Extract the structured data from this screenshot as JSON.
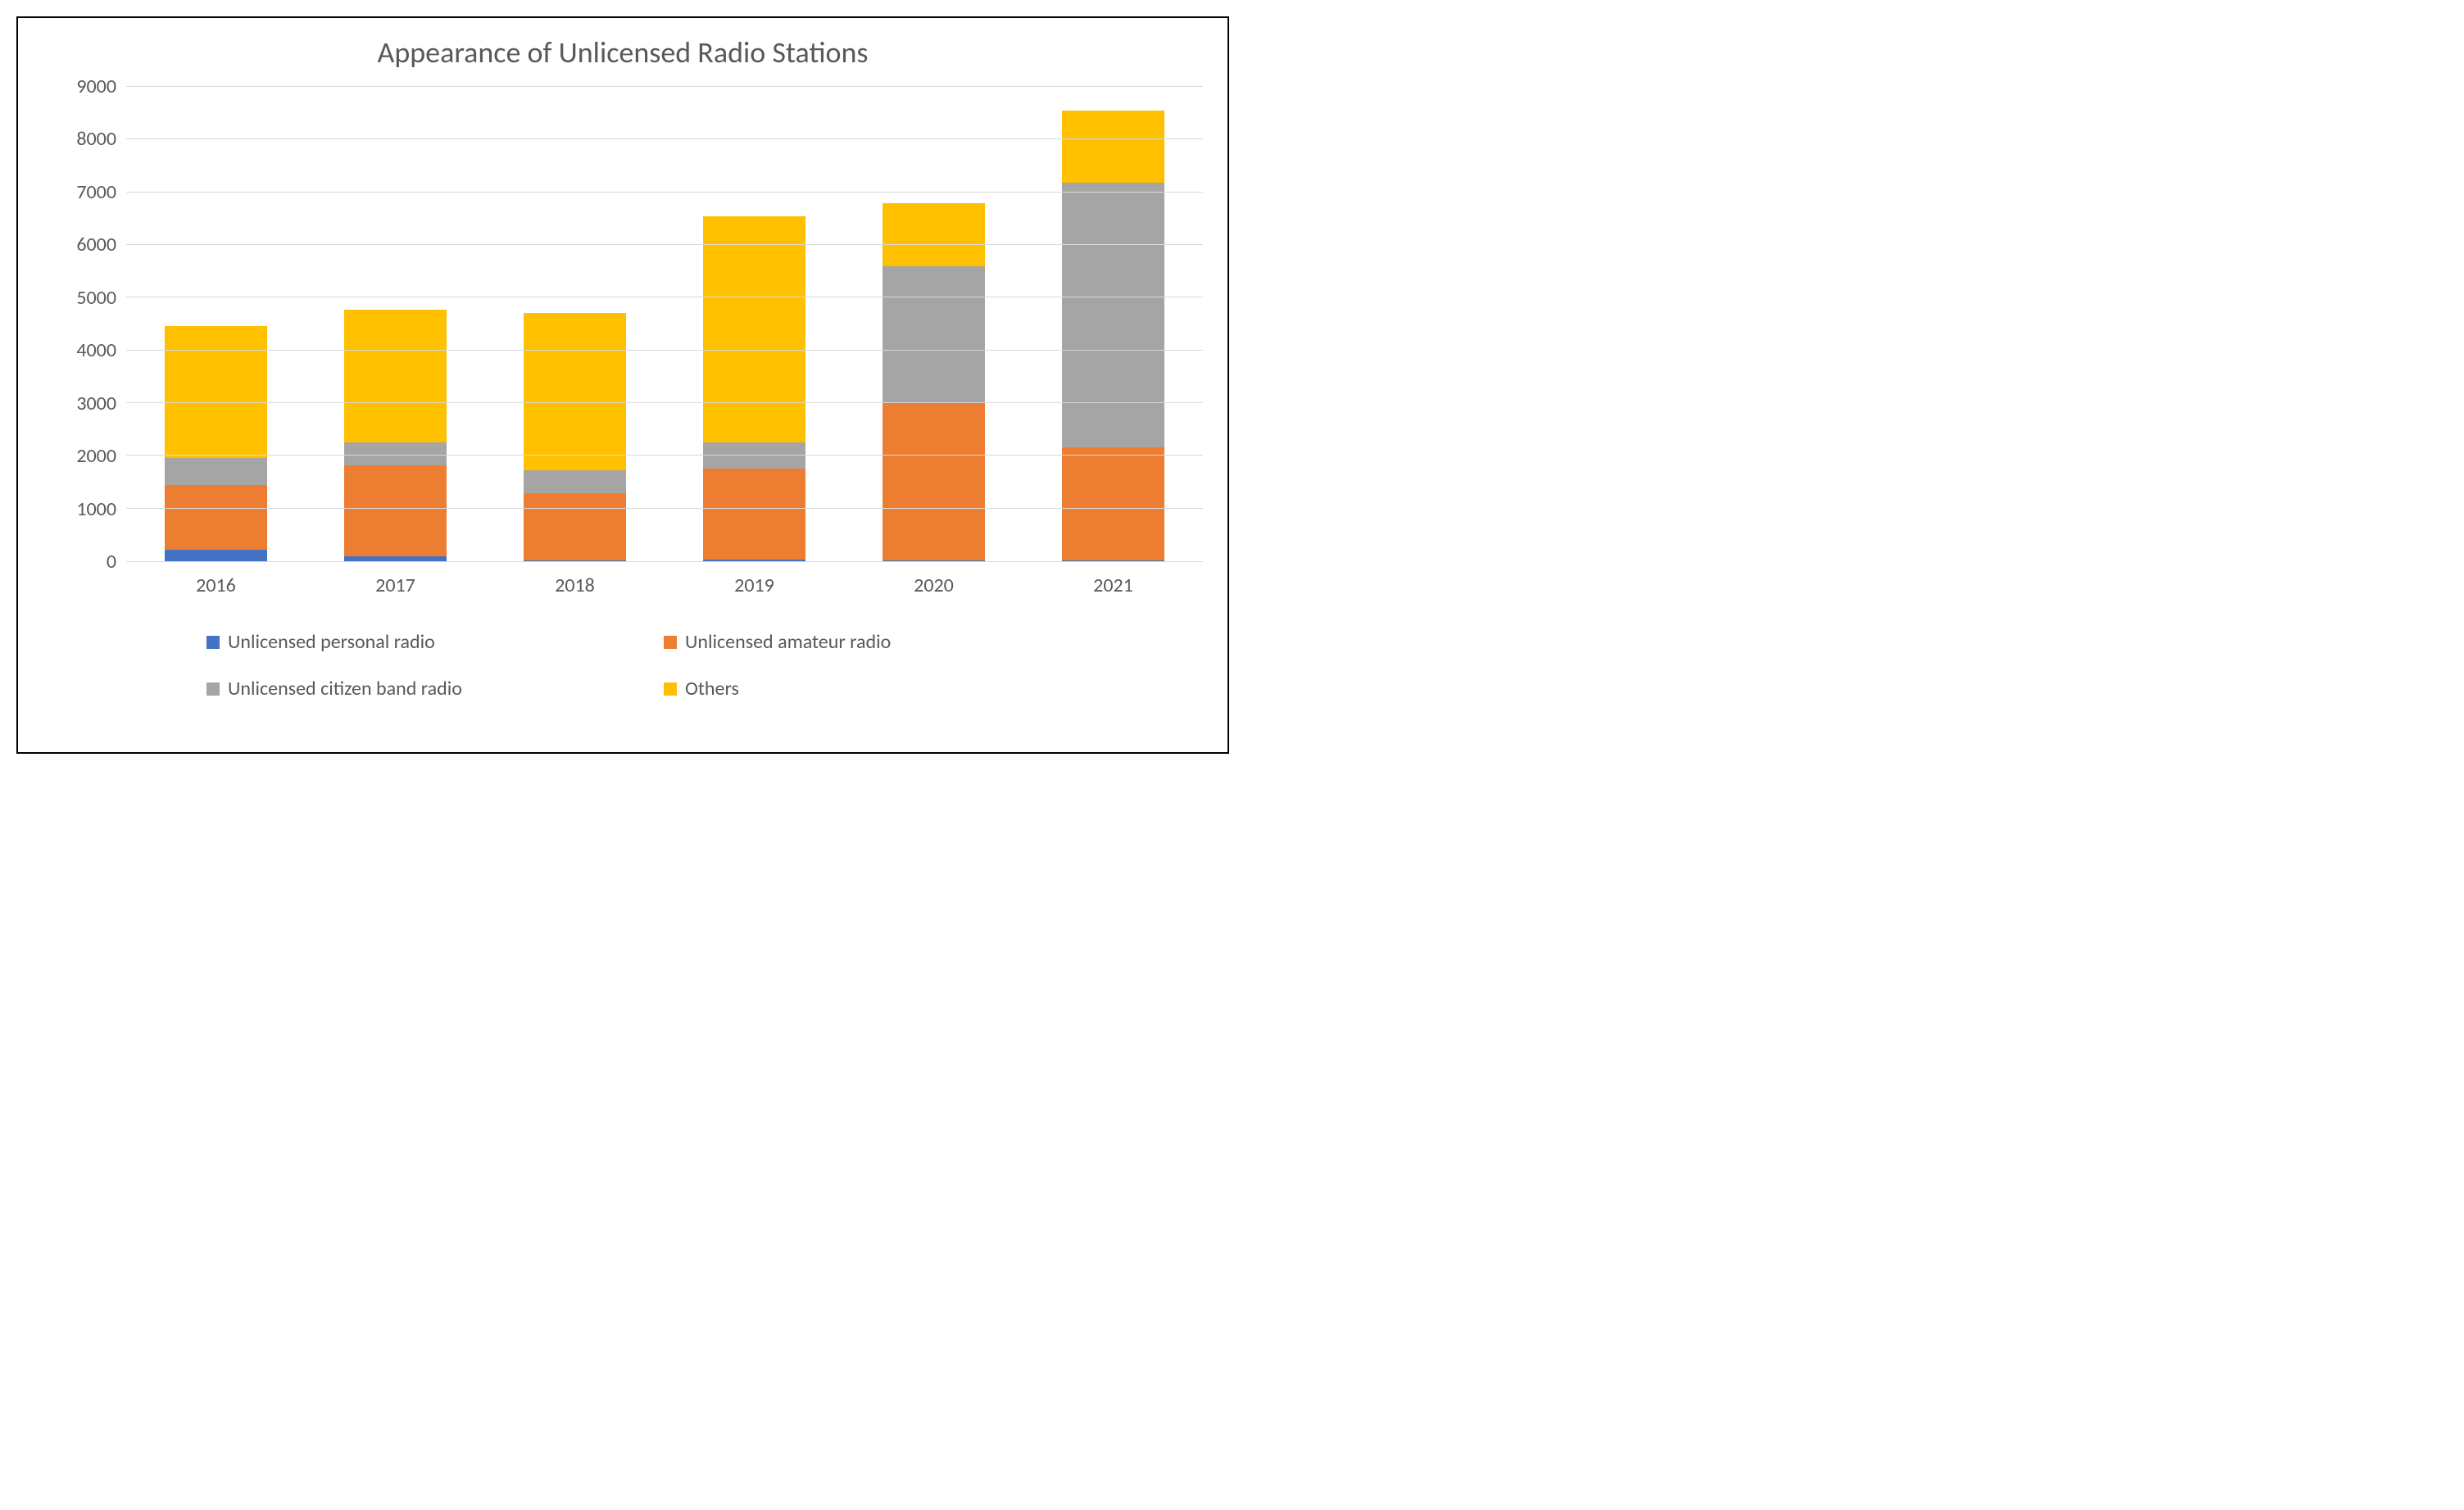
{
  "chart": {
    "type": "stacked_bar",
    "title": "Appearance of Unlicensed Radio Stations",
    "title_fontsize": 36,
    "title_color": "#595959",
    "background_color": "#ffffff",
    "border_color": "#000000",
    "grid_color": "#d9d9d9",
    "axis_label_color": "#595959",
    "axis_label_fontsize": 24,
    "categories": [
      "2016",
      "2017",
      "2018",
      "2019",
      "2020",
      "2021"
    ],
    "y_ticks": [
      0,
      1000,
      2000,
      3000,
      4000,
      5000,
      6000,
      7000,
      8000,
      9000
    ],
    "ylim": [
      0,
      9000
    ],
    "bar_width_ratio": 0.57,
    "series": [
      {
        "name": "Unlicensed personal radio",
        "color": "#4472c4",
        "values": [
          220,
          100,
          20,
          30,
          10,
          10
        ]
      },
      {
        "name": "Unlicensed amateur radio",
        "color": "#ed7d31",
        "values": [
          1230,
          1720,
          1270,
          1720,
          2980,
          2140
        ]
      },
      {
        "name": "Unlicensed citizen band radio",
        "color": "#a5a5a5",
        "values": [
          500,
          430,
          430,
          500,
          2590,
          5020
        ]
      },
      {
        "name": "Others",
        "color": "#ffc000",
        "values": [
          2500,
          2520,
          2980,
          4280,
          1200,
          1360
        ]
      }
    ],
    "legend_fontsize": 24,
    "legend_color": "#595959"
  }
}
